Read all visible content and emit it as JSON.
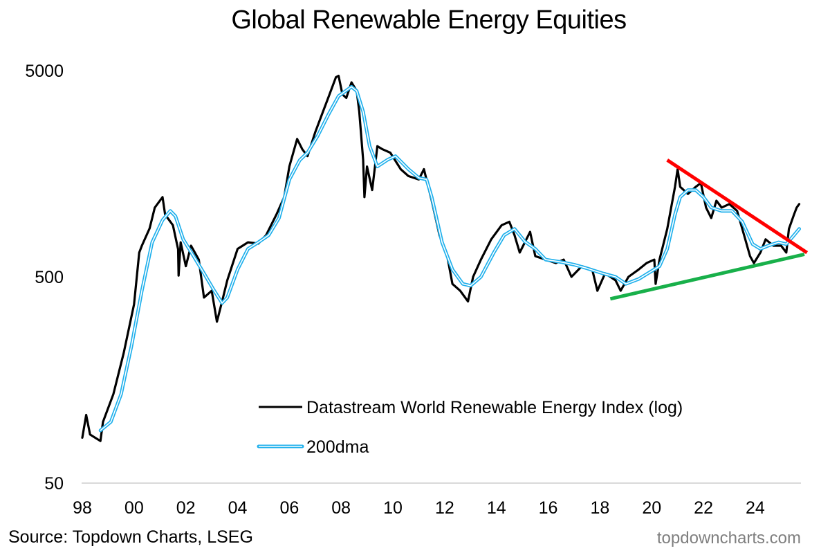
{
  "title": "Global Renewable Energy Equities",
  "source": "Source: Topdown Charts, LSEG",
  "watermark": "topdowncharts.com",
  "colors": {
    "index": "#000000",
    "ma_outer": "#1fb0ec",
    "ma_inner": "#ffffff",
    "resistance": "#ff0000",
    "support": "#18b04a",
    "axis": "#d9d9d9"
  },
  "chart_data": {
    "type": "line",
    "title": "Global Renewable Energy Equities",
    "xlabel": "",
    "ylabel": "",
    "yscale": "log",
    "ylim": [
      50,
      5000
    ],
    "xlim": [
      1998,
      2026.3
    ],
    "yticks": [
      {
        "value": 5000,
        "label": "5000"
      },
      {
        "value": 500,
        "label": "500"
      },
      {
        "value": 50,
        "label": "50"
      }
    ],
    "xticks": [
      {
        "value": 1998,
        "label": "98"
      },
      {
        "value": 2000,
        "label": "00"
      },
      {
        "value": 2002,
        "label": "02"
      },
      {
        "value": 2004,
        "label": "04"
      },
      {
        "value": 2006,
        "label": "06"
      },
      {
        "value": 2008,
        "label": "08"
      },
      {
        "value": 2010,
        "label": "10"
      },
      {
        "value": 2012,
        "label": "12"
      },
      {
        "value": 2014,
        "label": "14"
      },
      {
        "value": 2016,
        "label": "16"
      },
      {
        "value": 2018,
        "label": "18"
      },
      {
        "value": 2020,
        "label": "20"
      },
      {
        "value": 2022,
        "label": "22"
      },
      {
        "value": 2024,
        "label": "24"
      }
    ],
    "grid": false,
    "legend_position": "bottom-center",
    "series": [
      {
        "name": "Datastream World Renewable Energy Index (log)",
        "style": "line",
        "x": [
          1998.0,
          1998.15,
          1998.3,
          1998.7,
          1998.8,
          1999.2,
          1999.6,
          2000.0,
          2000.2,
          2000.3,
          2000.6,
          2000.8,
          2001.1,
          2001.2,
          2001.5,
          2001.7,
          2001.72,
          2001.8,
          2002.0,
          2002.2,
          2002.5,
          2002.7,
          2003.0,
          2003.2,
          2003.4,
          2003.6,
          2004.0,
          2004.4,
          2004.8,
          2005.1,
          2005.5,
          2005.8,
          2006.0,
          2006.3,
          2006.5,
          2006.7,
          2007.0,
          2007.3,
          2007.5,
          2007.8,
          2007.9,
          2008.05,
          2008.2,
          2008.4,
          2008.6,
          2008.7,
          2008.85,
          2008.9,
          2009.0,
          2009.2,
          2009.4,
          2009.6,
          2009.9,
          2010.3,
          2010.6,
          2011.0,
          2011.2,
          2011.5,
          2011.8,
          2012.1,
          2012.3,
          2012.6,
          2012.9,
          2013.1,
          2013.4,
          2013.8,
          2014.2,
          2014.5,
          2014.7,
          2014.9,
          2015.3,
          2015.5,
          2015.9,
          2016.3,
          2016.6,
          2016.9,
          2017.3,
          2017.7,
          2017.9,
          2018.2,
          2018.6,
          2018.8,
          2019.1,
          2019.5,
          2019.8,
          2020.1,
          2020.15,
          2020.3,
          2020.6,
          2020.9,
          2021.0,
          2021.1,
          2021.4,
          2021.7,
          2021.9,
          2022.1,
          2022.3,
          2022.5,
          2022.7,
          2023.0,
          2023.3,
          2023.5,
          2023.8,
          2023.95,
          2024.2,
          2024.4,
          2024.7,
          2025.0,
          2025.2,
          2025.3,
          2025.5,
          2025.6,
          2025.7
        ],
        "values": [
          83,
          107,
          86,
          80,
          99,
          135,
          214,
          368,
          656,
          708,
          859,
          1084,
          1218,
          1003,
          890,
          680,
          507,
          735,
          563,
          708,
          606,
          397,
          428,
          303,
          380,
          481,
          683,
          735,
          725,
          796,
          1003,
          1218,
          1718,
          2330,
          2077,
          1924,
          2516,
          3164,
          3689,
          4645,
          4716,
          3834,
          3689,
          4386,
          3984,
          3164,
          1850,
          1218,
          1713,
          1318,
          2150,
          2077,
          2000,
          1664,
          1540,
          1483,
          1664,
          1170,
          796,
          630,
          462,
          428,
          380,
          500,
          606,
          760,
          890,
          925,
          796,
          656,
          826,
          630,
          606,
          583,
          606,
          500,
          563,
          543,
          428,
          520,
          481,
          428,
          500,
          543,
          583,
          606,
          462,
          606,
          854,
          1366,
          1664,
          1366,
          1262,
          1366,
          1425,
          1084,
          964,
          1170,
          1084,
          1127,
          1044,
          854,
          630,
          583,
          656,
          760,
          708,
          708,
          656,
          854,
          1003,
          1084,
          1127
        ]
      },
      {
        "name": "200dma",
        "style": "double-line",
        "x": [
          1998.7,
          1999.1,
          1999.5,
          1999.9,
          2000.3,
          2000.7,
          2001.1,
          2001.4,
          2001.6,
          2001.9,
          2002.3,
          2002.7,
          2003.1,
          2003.4,
          2003.6,
          2004.0,
          2004.4,
          2004.8,
          2005.2,
          2005.6,
          2006.0,
          2006.4,
          2006.7,
          2007.1,
          2007.5,
          2007.9,
          2008.4,
          2008.6,
          2008.85,
          2009.1,
          2009.4,
          2009.8,
          2010.1,
          2010.6,
          2011.0,
          2011.3,
          2011.5,
          2011.9,
          2012.3,
          2012.7,
          2013.0,
          2013.4,
          2013.9,
          2014.3,
          2014.7,
          2015.1,
          2015.5,
          2015.9,
          2016.5,
          2017.0,
          2017.5,
          2018.1,
          2018.6,
          2019.0,
          2019.5,
          2020.1,
          2020.3,
          2020.6,
          2020.9,
          2021.1,
          2021.4,
          2021.7,
          2022.0,
          2022.3,
          2022.7,
          2023.1,
          2023.5,
          2023.9,
          2024.2,
          2024.5,
          2024.9,
          2025.2,
          2025.5,
          2025.7
        ],
        "values": [
          90,
          99,
          135,
          231,
          428,
          735,
          942,
          1044,
          984,
          760,
          630,
          520,
          428,
          373,
          397,
          543,
          683,
          735,
          796,
          964,
          1483,
          1838,
          2000,
          2421,
          3047,
          3763,
          4173,
          3984,
          3164,
          2150,
          1713,
          1850,
          1924,
          1664,
          1510,
          1483,
          1218,
          735,
          543,
          462,
          453,
          500,
          656,
          796,
          854,
          741,
          683,
          606,
          590,
          573,
          550,
          520,
          500,
          462,
          488,
          543,
          563,
          683,
          1003,
          1218,
          1318,
          1318,
          1218,
          1084,
          1044,
          1044,
          925,
          720,
          683,
          708,
          735,
          720,
          796,
          854
        ]
      }
    ],
    "annotations": [
      {
        "name": "resistance-trendline",
        "color": "red",
        "from": {
          "x": 2020.6,
          "value": 1842
        },
        "to": {
          "x": 2026.0,
          "value": 655
        }
      },
      {
        "name": "support-trendline",
        "color": "green",
        "from": {
          "x": 2018.4,
          "value": 391
        },
        "to": {
          "x": 2025.9,
          "value": 643
        }
      }
    ]
  }
}
